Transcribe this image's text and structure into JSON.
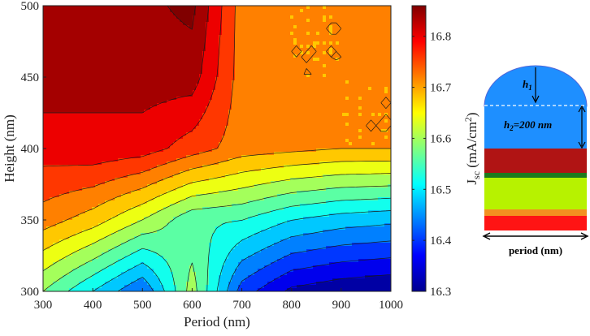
{
  "chart_data": {
    "type": "heatmap",
    "subtype": "filled-contour",
    "title": "",
    "xlabel": "Period (nm)",
    "ylabel": "Height (nm)",
    "xlim": [
      300,
      1000
    ],
    "ylim": [
      300,
      500
    ],
    "x": [
      300,
      400,
      500,
      600,
      700,
      800,
      900,
      1000
    ],
    "y": [
      300,
      350,
      400,
      450,
      500
    ],
    "x_ticks": [
      "300",
      "400",
      "500",
      "600",
      "700",
      "800",
      "900",
      "1000"
    ],
    "y_ticks": [
      "300",
      "350",
      "400",
      "450",
      "500"
    ],
    "z": [
      [
        16.58,
        16.5,
        16.42,
        16.6,
        16.4,
        16.33,
        16.31,
        16.3
      ],
      [
        16.72,
        16.68,
        16.62,
        16.55,
        16.54,
        16.5,
        16.48,
        16.47
      ],
      [
        16.8,
        16.81,
        16.8,
        16.76,
        16.72,
        16.71,
        16.7,
        16.7
      ],
      [
        16.84,
        16.83,
        16.84,
        16.84,
        16.72,
        16.7,
        16.7,
        16.7
      ],
      [
        16.86,
        16.83,
        16.85,
        16.87,
        16.72,
        16.7,
        16.7,
        16.71
      ]
    ],
    "contour_levels": [
      16.34,
      16.38,
      16.42,
      16.46,
      16.5,
      16.54,
      16.58,
      16.62,
      16.66,
      16.7,
      16.74,
      16.78,
      16.82,
      16.86
    ],
    "colorbar": {
      "label_main": "J",
      "label_sub": "sc",
      "label_unit": " (mA/cm",
      "label_sup": "2",
      "label_close": ")",
      "range": [
        16.3,
        16.86
      ],
      "ticks": [
        "16.3",
        "16.4",
        "16.5",
        "16.6",
        "16.7",
        "16.8"
      ],
      "colormap": "jet"
    },
    "grid": false
  },
  "inset": {
    "h1_main": "h",
    "h1_sub": "1",
    "h2_main": "h",
    "h2_sub": "2",
    "h2_value": "=200 nm",
    "period_label": "period (nm)",
    "layer_colors": [
      "#1e8fff",
      "#b01414",
      "#1d7a1d",
      "#b7f200",
      "#f39020",
      "#ff1414"
    ]
  }
}
